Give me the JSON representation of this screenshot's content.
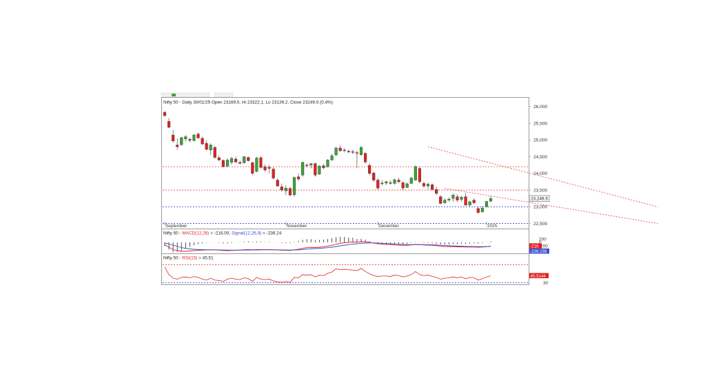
{
  "header": {
    "info": "Nifty 50 - Daily 30/01/25 Open 23169.5, Hi 23322.1, Lo 23139.2, Close 23249.5 (0.4%)"
  },
  "colors": {
    "up": "#3aa53a",
    "down": "#e32020",
    "macd": "#e32020",
    "signal": "#3a4fd0",
    "rsi": "#e32020",
    "resistance": "#e83a3a",
    "support": "#3a40c8",
    "channel": "#e83a3a",
    "grid": "#c8c8c8"
  },
  "chart_data": [
    {
      "type": "candlestick",
      "title": "Nifty 50 - Daily 30/01/25 Open 23169.5, Hi 23322.1, Lo 23139.2, Close 23249.5 (0.4%)",
      "ylim": [
        22450,
        26100
      ],
      "y_ticks": [
        "26,000",
        "25,500",
        "25,000",
        "24,500",
        "24,000",
        "23,500",
        "23,000",
        "22,500"
      ],
      "y_tick_values": [
        26000,
        25500,
        25000,
        24500,
        24000,
        23500,
        23000,
        22500
      ],
      "x_labels": [
        {
          "label": "September",
          "index": 0
        },
        {
          "label": "November",
          "index": 29
        },
        {
          "label": "December",
          "index": 51
        },
        {
          "label": "2025",
          "index": 77
        }
      ],
      "last_price_label": "23,249.5",
      "last_price": 23249.5,
      "horizontal_levels": [
        {
          "value": 24200,
          "style": "resistance"
        },
        {
          "value": 23500,
          "style": "resistance"
        },
        {
          "value": 23000,
          "style": "support"
        },
        {
          "value": 22500,
          "style": "support"
        }
      ],
      "trendlines": [
        {
          "start": [
            63,
            24800
          ],
          "end": [
            118,
            23000
          ]
        },
        {
          "start": [
            67,
            23550
          ],
          "end": [
            118,
            22500
          ]
        }
      ],
      "candles": [
        {
          "o": 25830,
          "h": 25870,
          "l": 25700,
          "c": 25730
        },
        {
          "o": 25560,
          "h": 25660,
          "l": 25350,
          "c": 25380
        },
        {
          "o": 25150,
          "h": 25300,
          "l": 24920,
          "c": 24970
        },
        {
          "o": 24850,
          "h": 25050,
          "l": 24700,
          "c": 24800
        },
        {
          "o": 24860,
          "h": 25100,
          "l": 24820,
          "c": 25070
        },
        {
          "o": 25030,
          "h": 25150,
          "l": 24960,
          "c": 25100
        },
        {
          "o": 25020,
          "h": 25070,
          "l": 24930,
          "c": 24990
        },
        {
          "o": 24980,
          "h": 25180,
          "l": 24960,
          "c": 25150
        },
        {
          "o": 25180,
          "h": 25230,
          "l": 25040,
          "c": 25060
        },
        {
          "o": 25050,
          "h": 25100,
          "l": 24860,
          "c": 24880
        },
        {
          "o": 24900,
          "h": 24990,
          "l": 24690,
          "c": 24720
        },
        {
          "o": 24700,
          "h": 24900,
          "l": 24550,
          "c": 24850
        },
        {
          "o": 24780,
          "h": 24820,
          "l": 24440,
          "c": 24480
        },
        {
          "o": 24470,
          "h": 24540,
          "l": 24380,
          "c": 24400
        },
        {
          "o": 24390,
          "h": 24420,
          "l": 24180,
          "c": 24200
        },
        {
          "o": 24220,
          "h": 24450,
          "l": 24180,
          "c": 24400
        },
        {
          "o": 24330,
          "h": 24500,
          "l": 24260,
          "c": 24450
        },
        {
          "o": 24430,
          "h": 24500,
          "l": 24310,
          "c": 24340
        },
        {
          "o": 24330,
          "h": 24390,
          "l": 24270,
          "c": 24300
        },
        {
          "o": 24320,
          "h": 24520,
          "l": 24280,
          "c": 24500
        },
        {
          "o": 24480,
          "h": 24500,
          "l": 24360,
          "c": 24380
        },
        {
          "o": 24320,
          "h": 24350,
          "l": 23950,
          "c": 24000
        },
        {
          "o": 24060,
          "h": 24500,
          "l": 24030,
          "c": 24460
        },
        {
          "o": 24470,
          "h": 24520,
          "l": 24150,
          "c": 24180
        },
        {
          "o": 24200,
          "h": 24270,
          "l": 24050,
          "c": 24100
        },
        {
          "o": 24180,
          "h": 24260,
          "l": 24000,
          "c": 24150
        },
        {
          "o": 24130,
          "h": 24180,
          "l": 23820,
          "c": 23860
        },
        {
          "o": 23800,
          "h": 23850,
          "l": 23600,
          "c": 23620
        },
        {
          "o": 23600,
          "h": 23700,
          "l": 23460,
          "c": 23500
        },
        {
          "o": 23480,
          "h": 23650,
          "l": 23350,
          "c": 23560
        },
        {
          "o": 23550,
          "h": 23600,
          "l": 23320,
          "c": 23350
        },
        {
          "o": 23360,
          "h": 23900,
          "l": 23300,
          "c": 23880
        },
        {
          "o": 23900,
          "h": 24000,
          "l": 23780,
          "c": 23830
        },
        {
          "o": 23950,
          "h": 24350,
          "l": 23900,
          "c": 24330
        },
        {
          "o": 24250,
          "h": 24300,
          "l": 24180,
          "c": 24230
        },
        {
          "o": 24250,
          "h": 24310,
          "l": 24150,
          "c": 24290
        },
        {
          "o": 24290,
          "h": 24330,
          "l": 23900,
          "c": 23950
        },
        {
          "o": 23980,
          "h": 24250,
          "l": 23950,
          "c": 24220
        },
        {
          "o": 24230,
          "h": 24280,
          "l": 24120,
          "c": 24170
        },
        {
          "o": 24200,
          "h": 24430,
          "l": 24180,
          "c": 24400
        },
        {
          "o": 24400,
          "h": 24580,
          "l": 24380,
          "c": 24530
        },
        {
          "o": 24550,
          "h": 24800,
          "l": 24530,
          "c": 24760
        },
        {
          "o": 24760,
          "h": 24850,
          "l": 24640,
          "c": 24680
        },
        {
          "o": 24680,
          "h": 24760,
          "l": 24630,
          "c": 24700
        },
        {
          "o": 24660,
          "h": 24720,
          "l": 24610,
          "c": 24650
        },
        {
          "o": 24650,
          "h": 24710,
          "l": 24580,
          "c": 24640
        },
        {
          "o": 24620,
          "h": 24680,
          "l": 24150,
          "c": 24600
        },
        {
          "o": 24560,
          "h": 24820,
          "l": 24530,
          "c": 24780
        },
        {
          "o": 24600,
          "h": 24640,
          "l": 24300,
          "c": 24340
        },
        {
          "o": 24240,
          "h": 24300,
          "l": 23950,
          "c": 24000
        },
        {
          "o": 24010,
          "h": 24050,
          "l": 23750,
          "c": 23800
        },
        {
          "o": 23800,
          "h": 23850,
          "l": 23500,
          "c": 23560
        },
        {
          "o": 23700,
          "h": 23800,
          "l": 23640,
          "c": 23710
        },
        {
          "o": 23710,
          "h": 23780,
          "l": 23660,
          "c": 23750
        },
        {
          "o": 23720,
          "h": 23790,
          "l": 23660,
          "c": 23700
        },
        {
          "o": 23700,
          "h": 23850,
          "l": 23660,
          "c": 23810
        },
        {
          "o": 23800,
          "h": 23870,
          "l": 23700,
          "c": 23750
        },
        {
          "o": 23720,
          "h": 23760,
          "l": 23500,
          "c": 23560
        },
        {
          "o": 23580,
          "h": 23720,
          "l": 23560,
          "c": 23690
        },
        {
          "o": 23700,
          "h": 23900,
          "l": 23680,
          "c": 23860
        },
        {
          "o": 23800,
          "h": 24250,
          "l": 23780,
          "c": 24200
        },
        {
          "o": 24150,
          "h": 24200,
          "l": 23700,
          "c": 23750
        },
        {
          "o": 23700,
          "h": 23760,
          "l": 23560,
          "c": 23620
        },
        {
          "o": 23620,
          "h": 23720,
          "l": 23520,
          "c": 23680
        },
        {
          "o": 23660,
          "h": 23700,
          "l": 23500,
          "c": 23520
        },
        {
          "o": 23520,
          "h": 23600,
          "l": 23350,
          "c": 23400
        },
        {
          "o": 23300,
          "h": 23350,
          "l": 23080,
          "c": 23100
        },
        {
          "o": 23120,
          "h": 23250,
          "l": 23080,
          "c": 23200
        },
        {
          "o": 23200,
          "h": 23280,
          "l": 23160,
          "c": 23230
        },
        {
          "o": 23250,
          "h": 23400,
          "l": 23150,
          "c": 23350
        },
        {
          "o": 23300,
          "h": 23380,
          "l": 23150,
          "c": 23200
        },
        {
          "o": 23220,
          "h": 23320,
          "l": 23150,
          "c": 23290
        },
        {
          "o": 23300,
          "h": 23420,
          "l": 23030,
          "c": 23050
        },
        {
          "o": 23050,
          "h": 23180,
          "l": 23000,
          "c": 23150
        },
        {
          "o": 23200,
          "h": 23250,
          "l": 23080,
          "c": 23120
        },
        {
          "o": 22950,
          "h": 23000,
          "l": 22790,
          "c": 22830
        },
        {
          "o": 22850,
          "h": 23020,
          "l": 22820,
          "c": 22960
        },
        {
          "o": 23000,
          "h": 23180,
          "l": 22980,
          "c": 23160
        },
        {
          "o": 23169.5,
          "h": 23322.1,
          "l": 23139.2,
          "c": 23249.5
        }
      ]
    },
    {
      "type": "line",
      "title": "Nifty 50 - MACD(12,26) = -216.00, Signal(12,26,9) = -236.24",
      "title_parts": [
        "Nifty 50 - ",
        "MACD(12,26)",
        " = -216.00, ",
        "Signal(12,26,9)",
        " = -236.24"
      ],
      "ylim": [
        -560,
        480
      ],
      "y_ticks": [
        "200",
        "0",
        "-200"
      ],
      "y_tick_values": [
        200,
        0,
        -200
      ],
      "value_labels": [
        "-216",
        "-236.239"
      ],
      "series": [
        {
          "name": "MACD(12,26)",
          "values": [
            -140,
            -280,
            -420,
            -480,
            -520,
            -520,
            -500,
            -480,
            -460,
            -450,
            -440,
            -430,
            -440,
            -450,
            -470,
            -480,
            -470,
            -455,
            -445,
            -430,
            -420,
            -430,
            -420,
            -420,
            -425,
            -420,
            -430,
            -440,
            -455,
            -460,
            -470,
            -430,
            -400,
            -350,
            -310,
            -290,
            -300,
            -280,
            -260,
            -220,
            -170,
            -110,
            -60,
            -20,
            0,
            20,
            10,
            40,
            30,
            0,
            -40,
            -80,
            -100,
            -120,
            -130,
            -150,
            -160,
            -170,
            -170,
            -150,
            -120,
            -130,
            -150,
            -160,
            -170,
            -190,
            -220,
            -240,
            -250,
            -250,
            -260,
            -260,
            -270,
            -270,
            -270,
            -280,
            -270,
            -245,
            -216
          ]
        },
        {
          "name": "Signal(12,26,9)",
          "values": [
            -40,
            -90,
            -160,
            -230,
            -300,
            -350,
            -380,
            -400,
            -415,
            -425,
            -430,
            -432,
            -434,
            -437,
            -442,
            -448,
            -452,
            -453,
            -452,
            -450,
            -446,
            -444,
            -440,
            -436,
            -434,
            -432,
            -431,
            -433,
            -437,
            -441,
            -447,
            -444,
            -435,
            -418,
            -397,
            -375,
            -360,
            -345,
            -330,
            -308,
            -280,
            -245,
            -205,
            -165,
            -130,
            -100,
            -80,
            -56,
            -40,
            -32,
            -32,
            -42,
            -54,
            -68,
            -80,
            -93,
            -106,
            -118,
            -129,
            -133,
            -130,
            -130,
            -134,
            -139,
            -145,
            -154,
            -167,
            -182,
            -195,
            -205,
            -215,
            -223,
            -232,
            -238,
            -243,
            -248,
            -250,
            -248,
            -236.24
          ]
        }
      ]
    },
    {
      "type": "line",
      "title": "Nifty 50 - RSI(15) = 45.51",
      "title_parts": [
        "Nifty 50 - ",
        "RSI(15)",
        " = 45.51"
      ],
      "ylim": [
        28,
        80
      ],
      "y_ticks": [
        "30"
      ],
      "y_tick_values": [
        30
      ],
      "value_labels": [
        "45.5144"
      ],
      "reference_levels": [
        70,
        30
      ],
      "series": [
        {
          "name": "RSI(15)",
          "values": [
            65,
            48,
            40,
            38,
            42,
            43,
            41,
            44,
            42,
            38,
            36,
            40,
            36,
            35,
            33,
            38,
            40,
            38,
            37,
            41,
            39,
            33,
            42,
            38,
            37,
            38,
            34,
            32,
            31,
            33,
            31,
            42,
            41,
            48,
            47,
            48,
            43,
            47,
            46,
            51,
            54,
            61,
            59,
            60,
            59,
            58,
            57,
            62,
            55,
            50,
            46,
            44,
            45,
            45,
            44,
            47,
            46,
            43,
            45,
            48,
            55,
            48,
            46,
            47,
            44,
            42,
            38,
            40,
            41,
            43,
            41,
            43,
            39,
            42,
            41,
            36,
            39,
            43,
            45.51
          ]
        }
      ]
    }
  ]
}
